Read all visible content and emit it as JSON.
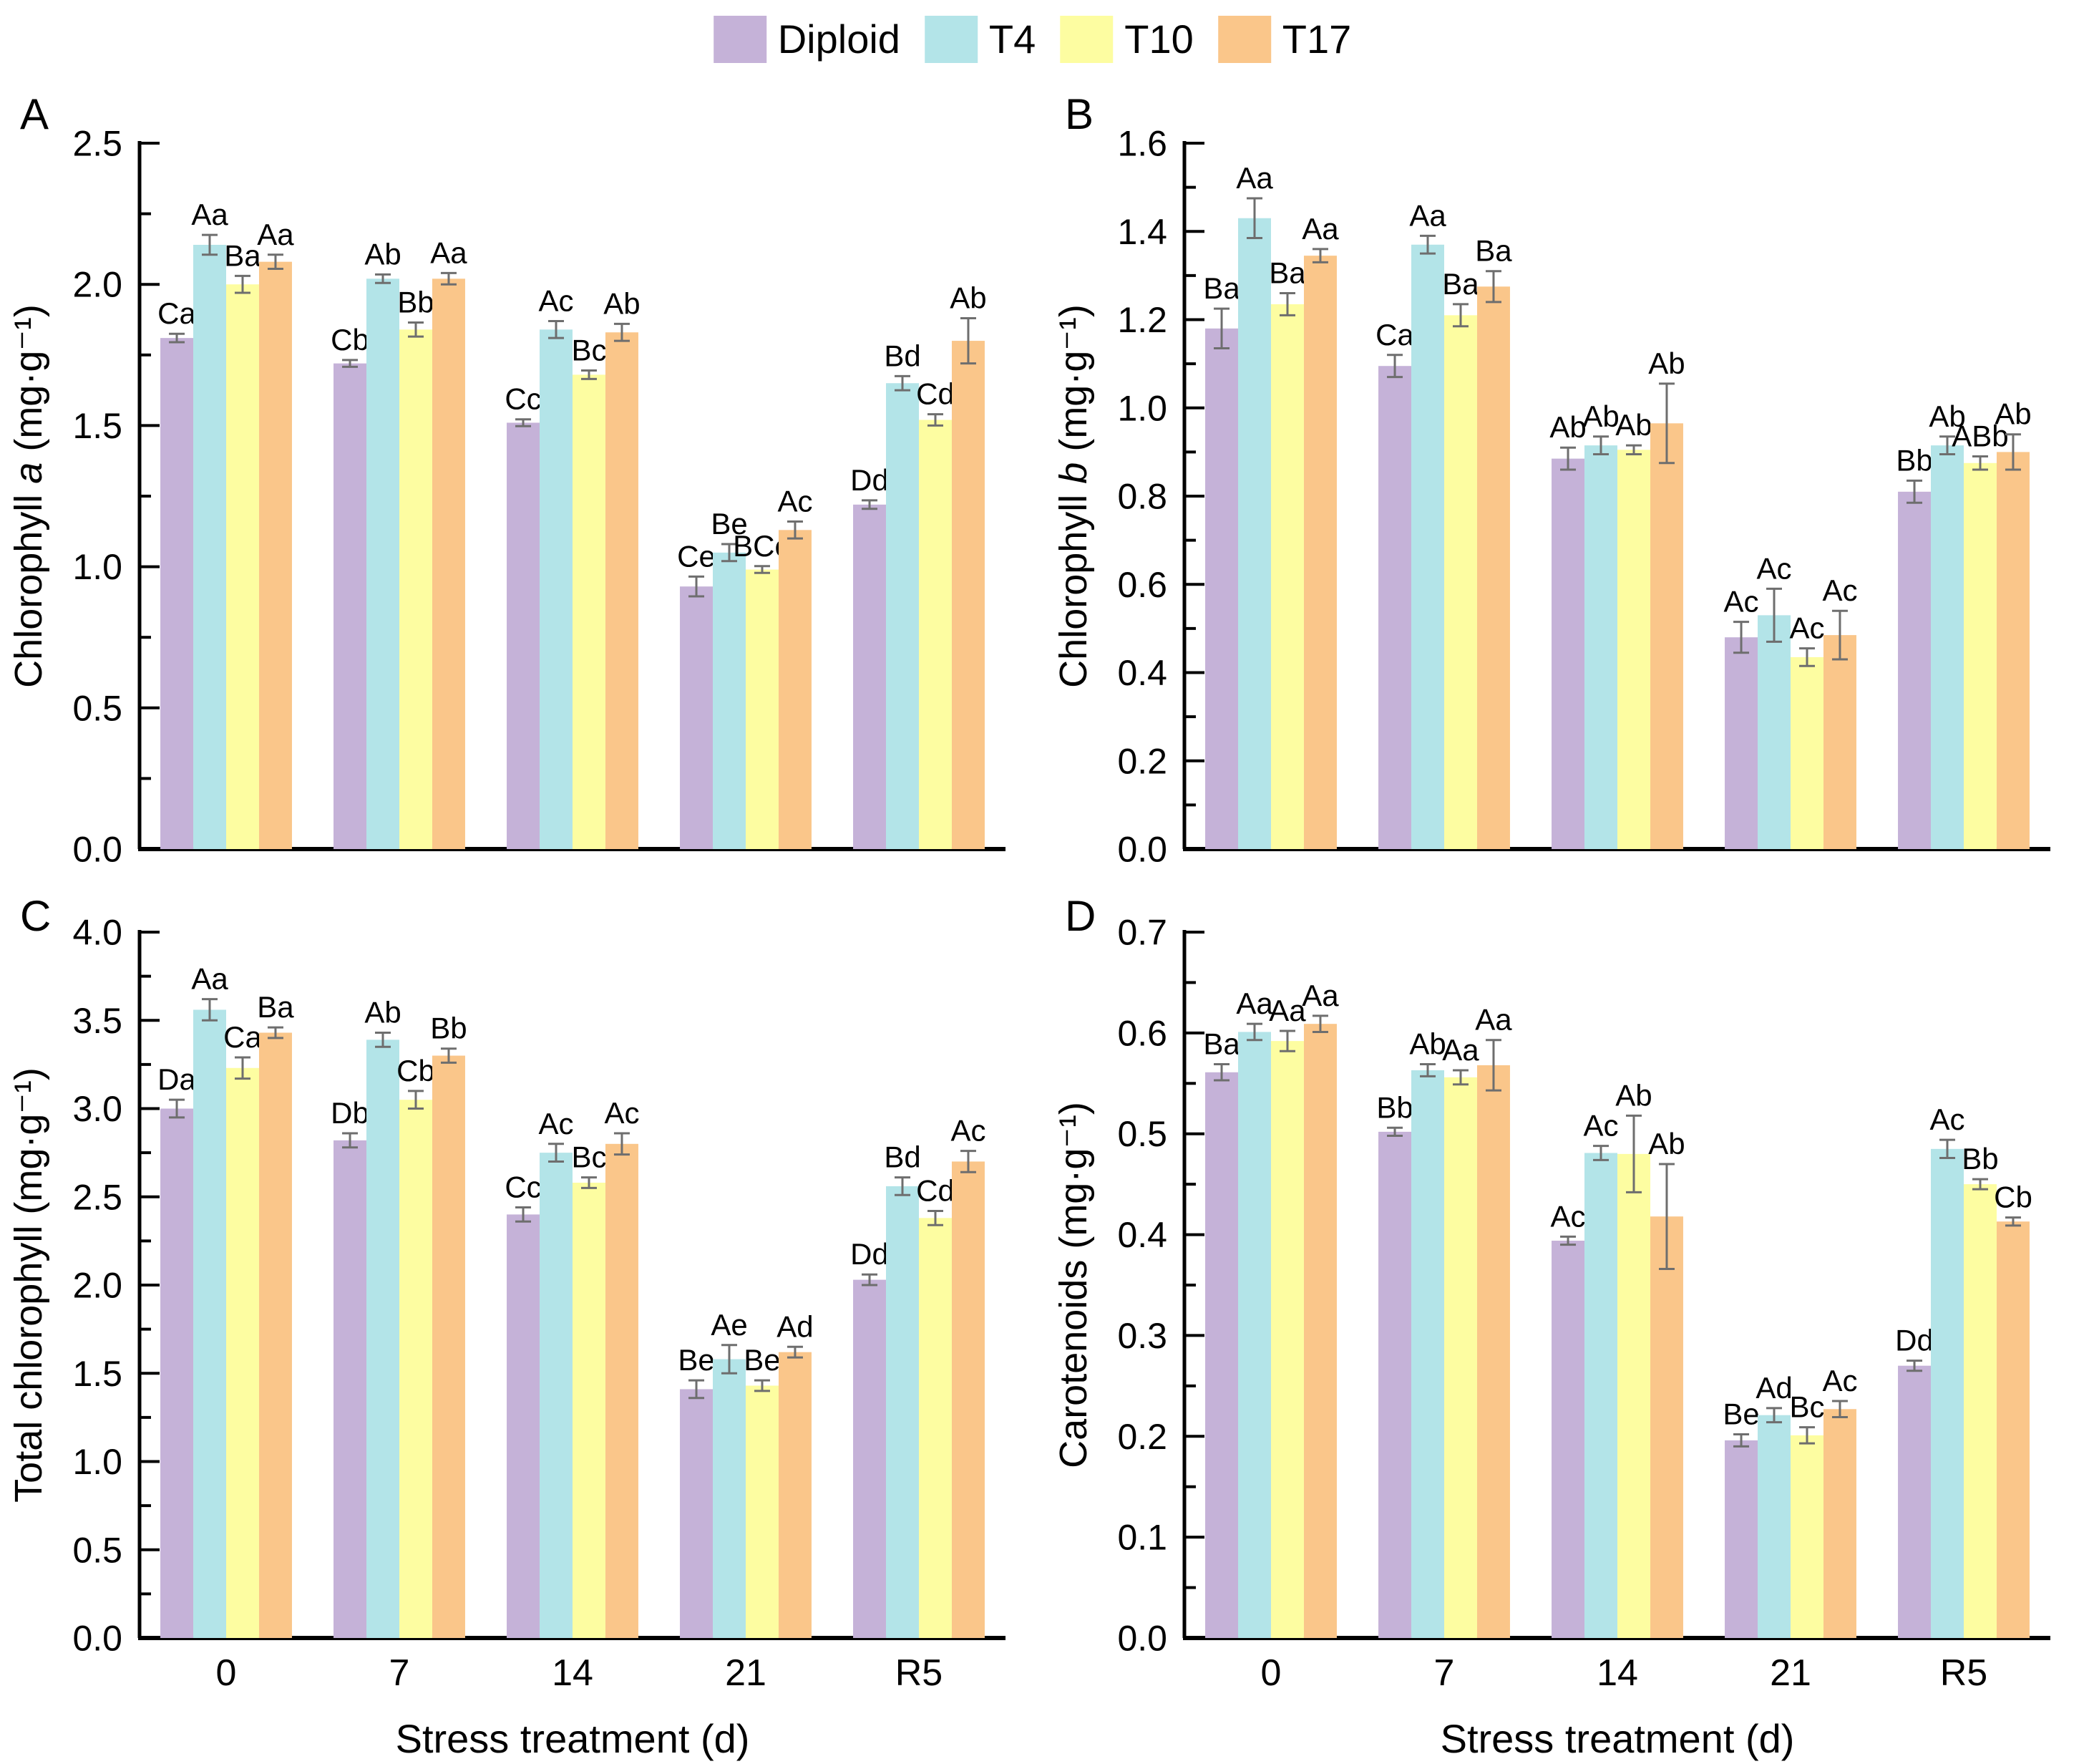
{
  "legend": {
    "items": [
      {
        "label": "Diploid",
        "color": "#c5b2d8"
      },
      {
        "label": "T4",
        "color": "#b3e4e8"
      },
      {
        "label": "T10",
        "color": "#fdfda1"
      },
      {
        "label": "T17",
        "color": "#fac68a"
      }
    ]
  },
  "x_axis": {
    "title": "Stress treatment (d)",
    "categories": [
      "0",
      "7",
      "14",
      "21",
      "R5"
    ]
  },
  "style": {
    "error_bar_color": "#6e6e6e",
    "axis_color": "#000000"
  },
  "chart_data": [
    {
      "type": "bar",
      "panel_label": "A",
      "ylabel_prefix": "Chlorophyll ",
      "ylabel_italic": "a",
      "ylabel_suffix": " (mg·g⁻¹)",
      "ylim": [
        0,
        2.5
      ],
      "major_step": 0.5,
      "minor_step": 0.25,
      "show_x_labels": false,
      "categories": [
        "0",
        "7",
        "14",
        "21",
        "R5"
      ],
      "series": [
        {
          "name": "Diploid",
          "values": [
            1.81,
            1.72,
            1.51,
            0.93,
            1.22
          ],
          "errors": [
            0.015,
            0.012,
            0.012,
            0.035,
            0.015
          ],
          "labels": [
            "Ca",
            "Cb",
            "Cc",
            "Ce",
            "Dd"
          ]
        },
        {
          "name": "T4",
          "values": [
            2.14,
            2.02,
            1.84,
            1.05,
            1.65
          ],
          "errors": [
            0.035,
            0.015,
            0.03,
            0.03,
            0.025
          ],
          "labels": [
            "Aa",
            "Ab",
            "Ac",
            "Be",
            "Bd"
          ]
        },
        {
          "name": "T10",
          "values": [
            2.0,
            1.84,
            1.68,
            0.99,
            1.52
          ],
          "errors": [
            0.03,
            0.025,
            0.015,
            0.012,
            0.02
          ],
          "labels": [
            "Ba",
            "Bb",
            "Bc",
            "BCe",
            "Cd"
          ]
        },
        {
          "name": "T17",
          "values": [
            2.08,
            2.02,
            1.83,
            1.13,
            1.8
          ],
          "errors": [
            0.025,
            0.02,
            0.03,
            0.03,
            0.08
          ],
          "labels": [
            "Aa",
            "Aa",
            "Ab",
            "Ac",
            "Ab"
          ]
        }
      ]
    },
    {
      "type": "bar",
      "panel_label": "B",
      "ylabel_prefix": "Chlorophyll ",
      "ylabel_italic": "b",
      "ylabel_suffix": " (mg·g⁻¹)",
      "ylim": [
        0,
        1.6
      ],
      "major_step": 0.2,
      "minor_step": 0.1,
      "show_x_labels": false,
      "categories": [
        "0",
        "7",
        "14",
        "21",
        "R5"
      ],
      "series": [
        {
          "name": "Diploid",
          "values": [
            1.18,
            1.095,
            0.885,
            0.48,
            0.81
          ],
          "errors": [
            0.045,
            0.025,
            0.025,
            0.035,
            0.025
          ],
          "labels": [
            "Ba",
            "Ca",
            "Ab",
            "Ac",
            "Bb"
          ]
        },
        {
          "name": "T4",
          "values": [
            1.43,
            1.37,
            0.915,
            0.53,
            0.915
          ],
          "errors": [
            0.045,
            0.02,
            0.02,
            0.06,
            0.02
          ],
          "labels": [
            "Aa",
            "Aa",
            "Ab",
            "Ac",
            "Ab"
          ]
        },
        {
          "name": "T10",
          "values": [
            1.235,
            1.21,
            0.905,
            0.435,
            0.875
          ],
          "errors": [
            0.025,
            0.025,
            0.01,
            0.02,
            0.015
          ],
          "labels": [
            "Ba",
            "Ba",
            "Ab",
            "Ac",
            "ABb"
          ]
        },
        {
          "name": "T17",
          "values": [
            1.345,
            1.275,
            0.965,
            0.485,
            0.9
          ],
          "errors": [
            0.015,
            0.035,
            0.09,
            0.055,
            0.04
          ],
          "labels": [
            "Aa",
            "Ba",
            "Ab",
            "Ac",
            "Ab"
          ]
        }
      ]
    },
    {
      "type": "bar",
      "panel_label": "C",
      "ylabel_prefix": "Total chlorophyll",
      "ylabel_italic": "",
      "ylabel_suffix": " (mg·g⁻¹)",
      "ylim": [
        0,
        4.0
      ],
      "major_step": 0.5,
      "minor_step": 0.25,
      "show_x_labels": true,
      "categories": [
        "0",
        "7",
        "14",
        "21",
        "R5"
      ],
      "series": [
        {
          "name": "Diploid",
          "values": [
            3.0,
            2.82,
            2.4,
            1.41,
            2.03
          ],
          "errors": [
            0.05,
            0.04,
            0.04,
            0.05,
            0.03
          ],
          "labels": [
            "Da",
            "Db",
            "Cc",
            "Be",
            "Dd"
          ]
        },
        {
          "name": "T4",
          "values": [
            3.56,
            3.39,
            2.75,
            1.58,
            2.56
          ],
          "errors": [
            0.06,
            0.04,
            0.05,
            0.08,
            0.05
          ],
          "labels": [
            "Aa",
            "Ab",
            "Ac",
            "Ae",
            "Bd"
          ]
        },
        {
          "name": "T10",
          "values": [
            3.23,
            3.05,
            2.58,
            1.43,
            2.38
          ],
          "errors": [
            0.06,
            0.05,
            0.03,
            0.03,
            0.04
          ],
          "labels": [
            "Ca",
            "Cb",
            "Bc",
            "Be",
            "Cd"
          ]
        },
        {
          "name": "T17",
          "values": [
            3.43,
            3.3,
            2.8,
            1.62,
            2.7
          ],
          "errors": [
            0.03,
            0.04,
            0.06,
            0.03,
            0.06
          ],
          "labels": [
            "Ba",
            "Bb",
            "Ac",
            "Ad",
            "Ac"
          ]
        }
      ]
    },
    {
      "type": "bar",
      "panel_label": "D",
      "ylabel_prefix": "Carotenoids",
      "ylabel_italic": "",
      "ylabel_suffix": " (mg·g⁻¹)",
      "ylim": [
        0,
        0.7
      ],
      "major_step": 0.1,
      "minor_step": 0.05,
      "show_x_labels": true,
      "categories": [
        "0",
        "7",
        "14",
        "21",
        "R5"
      ],
      "series": [
        {
          "name": "Diploid",
          "values": [
            0.561,
            0.502,
            0.394,
            0.196,
            0.27
          ],
          "errors": [
            0.008,
            0.004,
            0.004,
            0.006,
            0.005
          ],
          "labels": [
            "Ba",
            "Bb",
            "Ac",
            "Be",
            "Dd"
          ]
        },
        {
          "name": "T4",
          "values": [
            0.601,
            0.563,
            0.481,
            0.221,
            0.485
          ],
          "errors": [
            0.008,
            0.006,
            0.007,
            0.007,
            0.009
          ],
          "labels": [
            "Aa",
            "Ab",
            "Ac",
            "Ad",
            "Ac"
          ]
        },
        {
          "name": "T10",
          "values": [
            0.592,
            0.556,
            0.48,
            0.201,
            0.45
          ],
          "errors": [
            0.01,
            0.007,
            0.038,
            0.008,
            0.005
          ],
          "labels": [
            "Aa",
            "Aa",
            "Ab",
            "Bc",
            "Bb"
          ]
        },
        {
          "name": "T17",
          "values": [
            0.609,
            0.568,
            0.418,
            0.227,
            0.413
          ],
          "errors": [
            0.008,
            0.025,
            0.052,
            0.008,
            0.004
          ],
          "labels": [
            "Aa",
            "Aa",
            "Ab",
            "Ac",
            "Cb"
          ]
        }
      ]
    }
  ]
}
